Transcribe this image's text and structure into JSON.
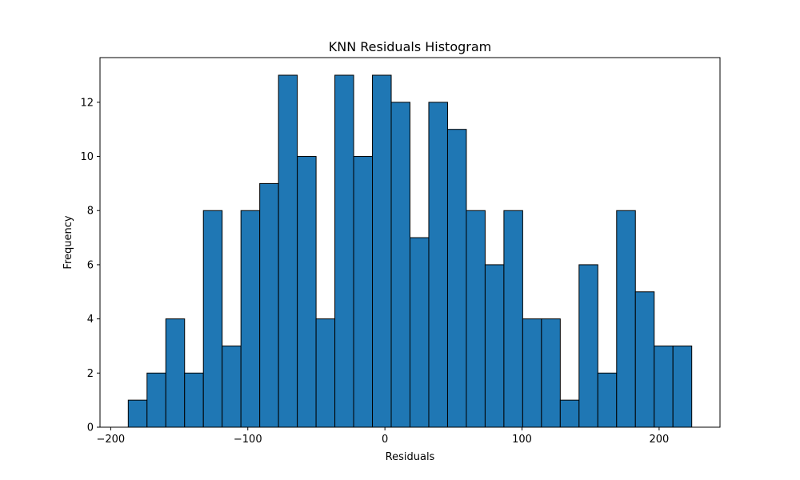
{
  "chart_data": {
    "type": "bar",
    "title": "KNN Residuals Histogram",
    "xlabel": "Residuals",
    "ylabel": "Frequency",
    "bin_edges": [
      -187.2,
      -163.7,
      -140.5,
      -117.0,
      -93.6,
      -70.2,
      -46.8,
      -23.4,
      0.0,
      23.4,
      46.8,
      70.2,
      93.6,
      117.0,
      140.5,
      163.7,
      187.2,
      210.6,
      234.0
    ],
    "bins": [
      {
        "start": -187.2,
        "end": -173.5,
        "count": 1
      },
      {
        "start": -173.5,
        "end": -159.8,
        "count": 2
      },
      {
        "start": -159.8,
        "end": -146.1,
        "count": 4
      },
      {
        "start": -146.1,
        "end": -132.4,
        "count": 2
      },
      {
        "start": -132.4,
        "end": -118.7,
        "count": 8
      },
      {
        "start": -118.7,
        "end": -105.0,
        "count": 3
      },
      {
        "start": -105.0,
        "end": -91.3,
        "count": 8
      },
      {
        "start": -91.3,
        "end": -77.6,
        "count": 9
      },
      {
        "start": -77.6,
        "end": -63.9,
        "count": 13
      },
      {
        "start": -63.9,
        "end": -50.2,
        "count": 10
      },
      {
        "start": -50.2,
        "end": -36.5,
        "count": 4
      },
      {
        "start": -36.5,
        "end": -22.8,
        "count": 13
      },
      {
        "start": -22.8,
        "end": -9.1,
        "count": 10
      },
      {
        "start": -9.1,
        "end": 4.6,
        "count": 13
      },
      {
        "start": 4.6,
        "end": 18.3,
        "count": 12
      },
      {
        "start": 18.3,
        "end": 32.0,
        "count": 7
      },
      {
        "start": 32.0,
        "end": 45.7,
        "count": 12
      },
      {
        "start": 45.7,
        "end": 59.4,
        "count": 11
      },
      {
        "start": 59.4,
        "end": 73.1,
        "count": 8
      },
      {
        "start": 73.1,
        "end": 86.8,
        "count": 6
      },
      {
        "start": 86.8,
        "end": 100.5,
        "count": 8
      },
      {
        "start": 100.5,
        "end": 114.2,
        "count": 4
      },
      {
        "start": 114.2,
        "end": 127.9,
        "count": 4
      },
      {
        "start": 127.9,
        "end": 141.6,
        "count": 1
      },
      {
        "start": 141.6,
        "end": 155.3,
        "count": 6
      },
      {
        "start": 155.3,
        "end": 169.0,
        "count": 2
      },
      {
        "start": 169.0,
        "end": 182.7,
        "count": 8
      },
      {
        "start": 182.7,
        "end": 196.4,
        "count": 5
      },
      {
        "start": 196.4,
        "end": 210.1,
        "count": 3
      },
      {
        "start": 210.1,
        "end": 223.8,
        "count": 3
      }
    ],
    "xlim": [
      -207.8,
      244.4
    ],
    "ylim": [
      0,
      13.65
    ],
    "xticks": [
      -200,
      -100,
      0,
      100,
      200
    ],
    "xtick_labels": [
      "−200",
      "−100",
      "0",
      "100",
      "200"
    ],
    "yticks": [
      0,
      2,
      4,
      6,
      8,
      10,
      12
    ],
    "ytick_labels": [
      "0",
      "2",
      "4",
      "6",
      "8",
      "10",
      "12"
    ],
    "grid": false,
    "colors": {
      "bar_fill": "#1f77b4",
      "bar_edge": "#000000",
      "axes": "#000000",
      "background": "#ffffff"
    }
  }
}
